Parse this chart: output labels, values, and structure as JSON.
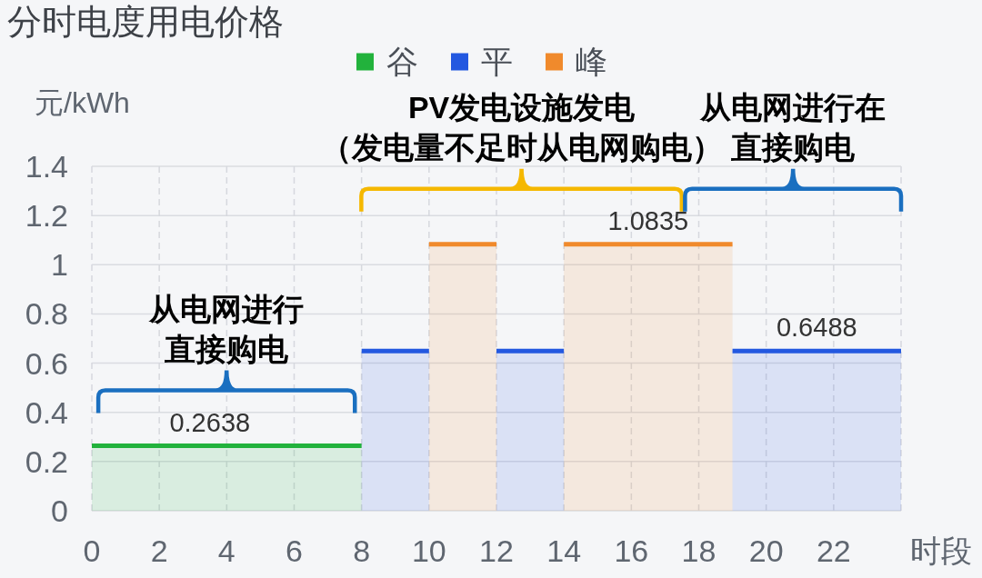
{
  "chart_data": {
    "type": "area",
    "title": "分时电度用电价格",
    "xlabel": "时段",
    "ylabel": "元/kWh",
    "xlim": [
      0,
      24
    ],
    "xticks": [
      0,
      2,
      4,
      6,
      8,
      10,
      12,
      14,
      16,
      18,
      20,
      22,
      {
        "value": 24,
        "label": null
      }
    ],
    "ylim": [
      0,
      1.4
    ],
    "yticks": [
      0,
      0.2,
      0.4,
      0.6,
      0.8,
      1,
      1.2,
      1.4
    ],
    "grid": true,
    "legend": "top",
    "series": [
      {
        "name": "谷",
        "color": "#22b23c",
        "x": [
          0,
          3.5,
          8
        ],
        "values": [
          0.2638,
          0.2638,
          0.2638
        ],
        "value_labels": [
          null,
          "0.2638",
          null
        ]
      },
      {
        "name": "平",
        "color": "#2358e0",
        "x": [
          8,
          10
        ],
        "values": [
          0.6488,
          0.6488
        ]
      },
      {
        "name": "峰",
        "color": "#f08a2c",
        "x": [
          10,
          12
        ],
        "values": [
          1.0835,
          1.0835
        ]
      },
      {
        "color": "#2358e0",
        "x": [
          12,
          14
        ],
        "values": [
          0.6488,
          0.6488
        ]
      },
      {
        "color": "#f08a2c",
        "x": [
          14,
          16.5,
          19
        ],
        "values": [
          1.0835,
          1.0835,
          1.0835
        ],
        "value_labels": [
          null,
          "1.0835",
          null
        ]
      },
      {
        "color": "#2358e0",
        "x": [
          19,
          21.5,
          24
        ],
        "values": [
          0.6488,
          0.6488,
          0.6488
        ],
        "value_labels": [
          null,
          "0.6488",
          null
        ]
      }
    ],
    "annotations": [
      "从电网进行",
      "直接购电",
      "PV发电设施发电",
      "（发电量不足时从电网购电）",
      "从电网进行在",
      "直接购电"
    ]
  }
}
